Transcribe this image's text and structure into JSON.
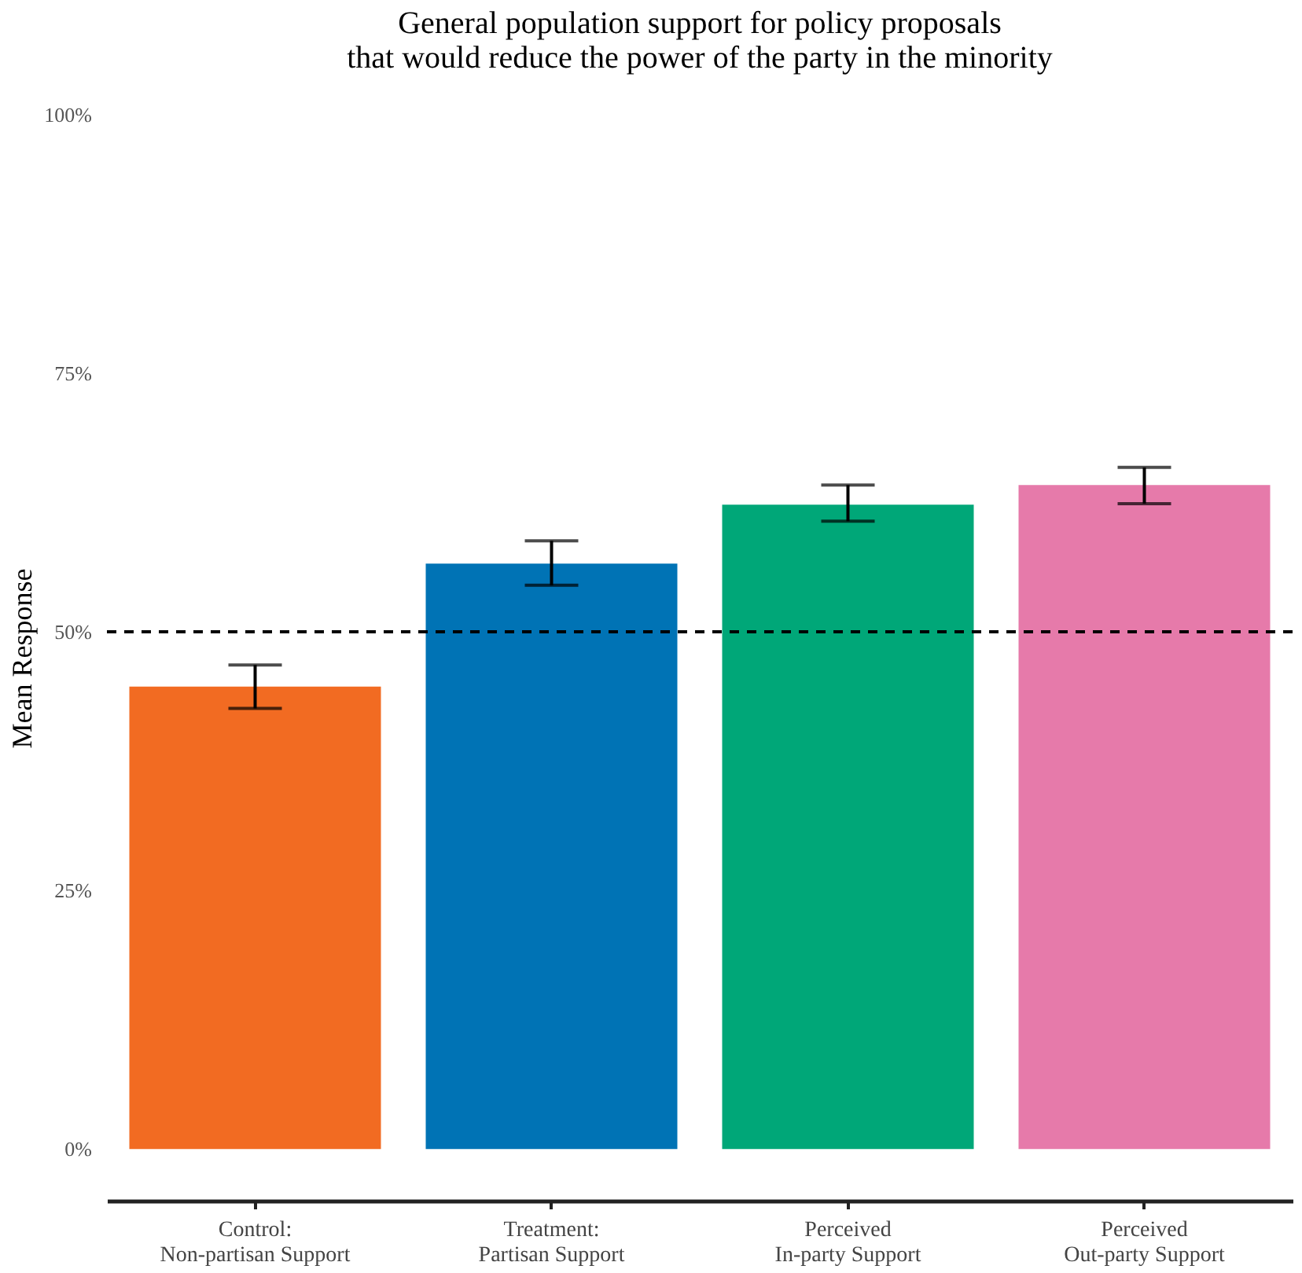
{
  "chart_data": {
    "type": "bar",
    "title": "General population support for policy proposals\nthat would reduce the power of the party in the minority",
    "ylabel": "Mean Response",
    "categories": [
      "Control:\nNon-partisan Support",
      "Treatment:\nPartisan Support",
      "Perceived\nIn-party Support",
      "Perceived\nOut-party Support"
    ],
    "values": [
      44.7,
      56.6,
      62.3,
      64.2
    ],
    "colors": [
      "#f26b22",
      "#0073b5",
      "#00a778",
      "#e67aaa"
    ],
    "errors": [
      [
        42.6,
        46.8
      ],
      [
        54.5,
        58.8
      ],
      [
        60.7,
        64.2
      ],
      [
        62.4,
        65.9
      ]
    ],
    "ylim": [
      -5,
      100
    ],
    "yticks": [
      {
        "value": 0,
        "label": "0%"
      },
      {
        "value": 25,
        "label": "25%"
      },
      {
        "value": 50,
        "label": "50%"
      },
      {
        "value": 75,
        "label": "75%"
      },
      {
        "value": 100,
        "label": "100%"
      }
    ],
    "ref_lines": [
      {
        "axis": "y",
        "value": 50,
        "line_style": "dashed",
        "color": "#000000"
      }
    ],
    "grid": false
  }
}
